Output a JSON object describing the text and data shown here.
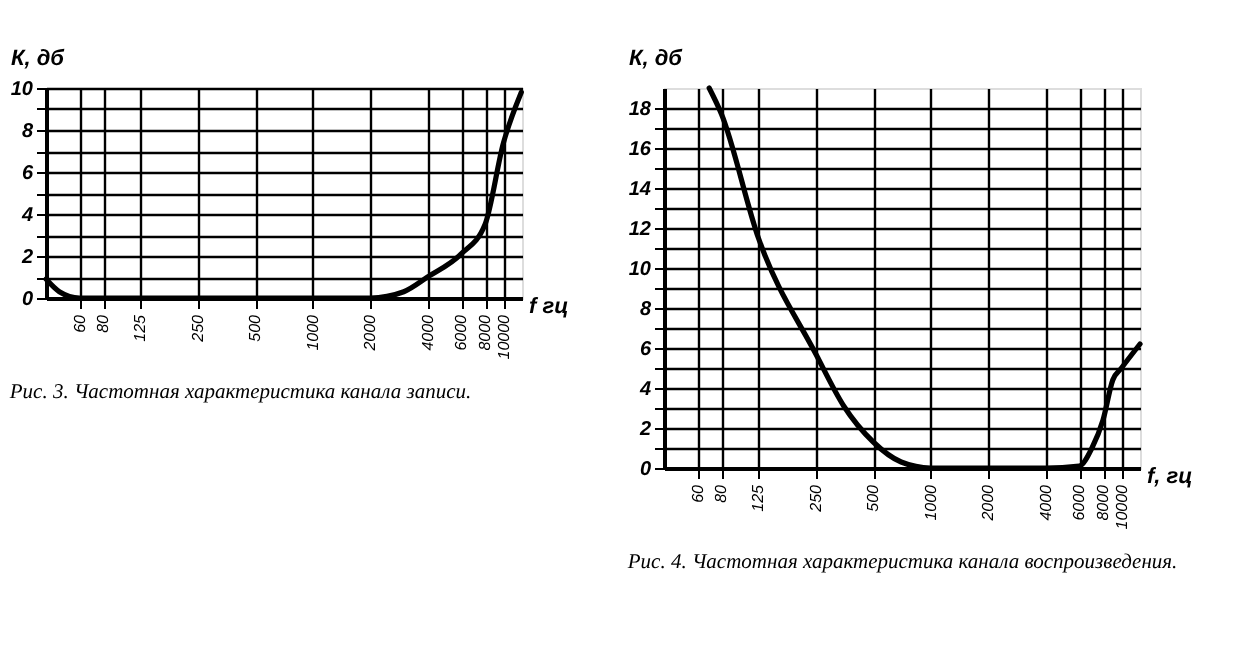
{
  "chart_data": [
    {
      "type": "line",
      "title": "Рис. 3. Частотная характеристика канала записи.",
      "xlabel": "f гц",
      "ylabel": "К, дб",
      "log": "x",
      "grid": true,
      "line_style": "solid",
      "x": [
        40,
        47,
        60,
        100,
        300,
        1000,
        2000,
        3000,
        4000,
        6000,
        8000,
        10000,
        12400
      ],
      "values": [
        0.9,
        0.3,
        0,
        0,
        0,
        0,
        0,
        0.3,
        1.0,
        2.1,
        3.5,
        7.4,
        9.8
      ],
      "color": "#000000",
      "xlim": [
        40,
        12500
      ],
      "xticks": [
        60,
        80,
        125,
        250,
        500,
        1000,
        2000,
        4000,
        6000,
        8000,
        10000
      ],
      "ylim": [
        0,
        10
      ],
      "yticks": [
        0,
        {
          "value": 1,
          "label": null
        },
        2,
        {
          "value": 3,
          "label": null
        },
        4,
        {
          "value": 5,
          "label": null
        },
        6,
        {
          "value": 7,
          "label": null
        },
        8,
        {
          "value": 9,
          "label": null
        },
        10
      ]
    },
    {
      "type": "line",
      "title": "Рис. 4. Частотная характеристика канала воспроизведения.",
      "xlabel": "f, гц",
      "ylabel": "К, дб",
      "log": "x",
      "grid": true,
      "line_style": "solid",
      "x": [
        69,
        80,
        125,
        250,
        350,
        500,
        700,
        1000,
        2000,
        4000,
        6000,
        7000,
        8000,
        9000,
        10000,
        12500
      ],
      "values": [
        19,
        17.7,
        11.5,
        5.7,
        3.1,
        1.3,
        0.3,
        0,
        0,
        0,
        0.1,
        1.0,
        2.4,
        4.4,
        5.0,
        6.2
      ],
      "color": "#000000",
      "xlim": [
        40,
        12500
      ],
      "xticks": [
        60,
        80,
        125,
        250,
        500,
        1000,
        2000,
        4000,
        6000,
        8000,
        10000
      ],
      "ylim": [
        0,
        19
      ],
      "yticks": [
        0,
        {
          "value": 1,
          "label": null
        },
        2,
        {
          "value": 3,
          "label": null
        },
        4,
        {
          "value": 5,
          "label": null
        },
        6,
        {
          "value": 7,
          "label": null
        },
        8,
        {
          "value": 9,
          "label": null
        },
        10,
        {
          "value": 11,
          "label": null
        },
        12,
        {
          "value": 13,
          "label": null
        },
        14,
        {
          "value": 15,
          "label": null
        },
        16,
        {
          "value": 17,
          "label": null
        },
        18
      ]
    }
  ]
}
